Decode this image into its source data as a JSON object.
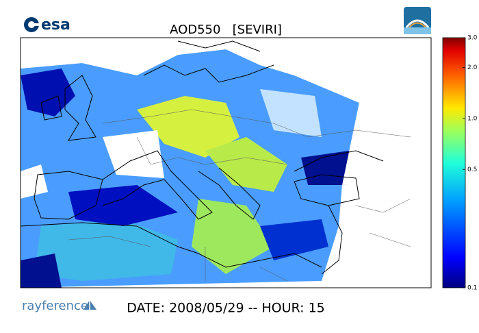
{
  "header": {
    "logo": "esa",
    "title": "AOD550   [SEVIRI]"
  },
  "colorbar": {
    "scale": "log",
    "lim": [
      0.1,
      3.0
    ],
    "ticks": [
      {
        "value": 3,
        "label": "3.0"
      },
      {
        "value": 2,
        "label": "2.0"
      },
      {
        "value": 1,
        "label": "1.0"
      },
      0.5,
      0.1
    ]
  },
  "footer": {
    "brand": "rayference",
    "date": "DATE: 2008/05/29 -- HOUR: 15"
  }
}
